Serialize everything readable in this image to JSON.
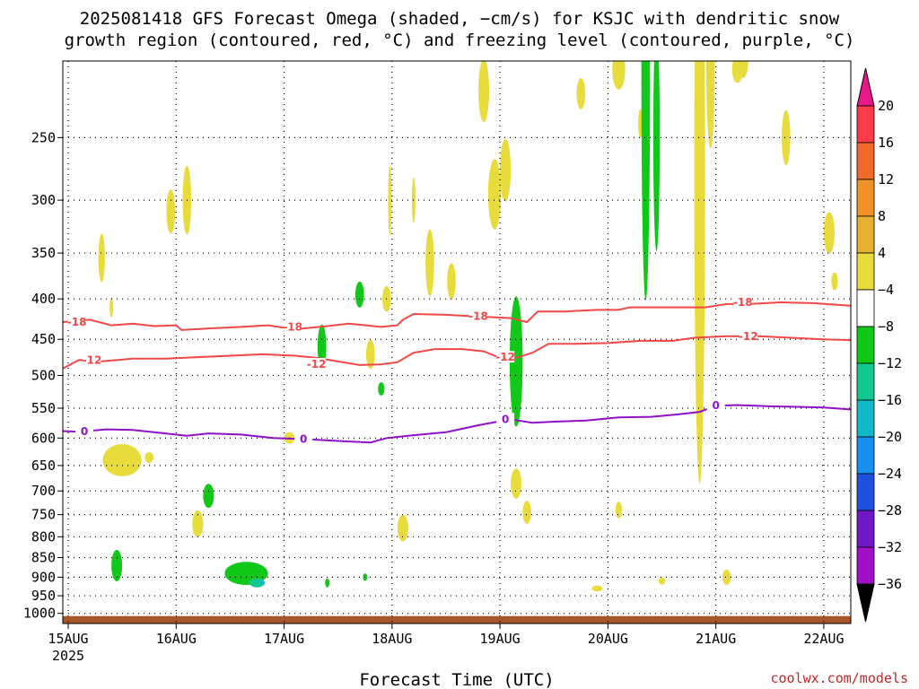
{
  "title_line1": "2025081418 GFS Forecast Omega (shaded, −cm/s) for KSJC with dendritic snow",
  "title_line2": "growth region (contoured, red, °C) and freezing level (contoured, purple, °C)",
  "credit": "coolwx.com/models",
  "chart_data": {
    "type": "heatmap",
    "xlabel": "Forecast Time (UTC)",
    "x_ticks": [
      {
        "label": "15AUG",
        "sub": "2025",
        "day": 0
      },
      {
        "label": "16AUG",
        "day": 1
      },
      {
        "label": "17AUG",
        "day": 2
      },
      {
        "label": "18AUG",
        "day": 3
      },
      {
        "label": "19AUG",
        "day": 4
      },
      {
        "label": "20AUG",
        "day": 5
      },
      {
        "label": "21AUG",
        "day": 6
      },
      {
        "label": "22AUG",
        "day": 7
      }
    ],
    "x_range_days": [
      -0.05,
      7.25
    ],
    "y_scale": "log-pressure",
    "y_range_hPa": [
      200,
      1030
    ],
    "y_ticks": [
      250,
      300,
      350,
      400,
      450,
      500,
      550,
      600,
      650,
      700,
      750,
      800,
      850,
      900,
      950,
      1000
    ],
    "grid": true,
    "colorbar": {
      "labels": [
        "20",
        "16",
        "12",
        "8",
        "4",
        "−4",
        "−8",
        "−12",
        "−16",
        "−20",
        "−24",
        "−28",
        "−32",
        "−36"
      ],
      "colors": [
        "#ff3a4a",
        "#f06a2a",
        "#f09228",
        "#e8b030",
        "#e8dc3c",
        "#ffffff",
        "#10c818",
        "#10c890",
        "#10b8c8",
        "#1890f0",
        "#2050e0",
        "#7018c8",
        "#a010c8",
        "#a8a8a8"
      ],
      "top_arrow_color": "#e8188a",
      "bottom_arrow_color": "#000000"
    },
    "contours": [
      {
        "name": "-18",
        "color": "#f04848",
        "points": [
          [
            -0.05,
            428
          ],
          [
            0.2,
            425
          ],
          [
            0.4,
            432
          ],
          [
            0.6,
            430
          ],
          [
            0.8,
            433
          ],
          [
            1.0,
            432
          ],
          [
            1.05,
            438
          ],
          [
            1.3,
            436
          ],
          [
            1.6,
            434
          ],
          [
            1.85,
            432
          ],
          [
            2.1,
            437
          ],
          [
            2.4,
            433
          ],
          [
            2.6,
            430
          ],
          [
            2.9,
            434
          ],
          [
            3.05,
            432
          ],
          [
            3.1,
            425
          ],
          [
            3.2,
            418
          ],
          [
            3.5,
            419
          ],
          [
            3.8,
            421
          ],
          [
            4.1,
            423
          ],
          [
            4.25,
            428
          ],
          [
            4.35,
            415
          ],
          [
            4.6,
            415
          ],
          [
            4.9,
            413
          ],
          [
            5.1,
            413
          ],
          [
            5.2,
            410
          ],
          [
            5.5,
            410
          ],
          [
            5.9,
            410
          ],
          [
            6.1,
            406
          ],
          [
            6.3,
            406
          ],
          [
            6.6,
            404
          ],
          [
            6.9,
            405
          ],
          [
            7.25,
            408
          ]
        ],
        "labels": [
          [
            0.08,
            428
          ],
          [
            2.08,
            434
          ],
          [
            3.8,
            421
          ],
          [
            6.25,
            404
          ]
        ]
      },
      {
        "name": "-12",
        "color": "#f04848",
        "points": [
          [
            -0.05,
            490
          ],
          [
            0.1,
            478
          ],
          [
            0.3,
            480
          ],
          [
            0.6,
            476
          ],
          [
            0.9,
            476
          ],
          [
            1.2,
            474
          ],
          [
            1.5,
            472
          ],
          [
            1.8,
            470
          ],
          [
            2.1,
            472
          ],
          [
            2.3,
            475
          ],
          [
            2.5,
            480
          ],
          [
            2.7,
            485
          ],
          [
            2.9,
            484
          ],
          [
            3.05,
            481
          ],
          [
            3.2,
            468
          ],
          [
            3.4,
            463
          ],
          [
            3.65,
            463
          ],
          [
            3.85,
            466
          ],
          [
            4.0,
            475
          ],
          [
            4.15,
            475
          ],
          [
            4.3,
            468
          ],
          [
            4.45,
            456
          ],
          [
            4.7,
            456
          ],
          [
            5.0,
            455
          ],
          [
            5.3,
            452
          ],
          [
            5.6,
            452
          ],
          [
            5.8,
            448
          ],
          [
            6.1,
            446
          ],
          [
            6.4,
            446
          ],
          [
            6.7,
            448
          ],
          [
            7.0,
            450
          ],
          [
            7.25,
            451
          ]
        ],
        "labels": [
          [
            0.22,
            478
          ],
          [
            2.3,
            484
          ],
          [
            4.05,
            474
          ],
          [
            6.3,
            446
          ]
        ]
      },
      {
        "name": "0",
        "color": "#9010c8",
        "points": [
          [
            -0.05,
            588
          ],
          [
            0.1,
            589
          ],
          [
            0.35,
            585
          ],
          [
            0.6,
            586
          ],
          [
            0.9,
            592
          ],
          [
            1.1,
            596
          ],
          [
            1.3,
            592
          ],
          [
            1.6,
            594
          ],
          [
            1.9,
            600
          ],
          [
            2.2,
            602
          ],
          [
            2.5,
            605
          ],
          [
            2.8,
            608
          ],
          [
            2.95,
            600
          ],
          [
            3.2,
            595
          ],
          [
            3.5,
            590
          ],
          [
            3.8,
            578
          ],
          [
            4.1,
            568
          ],
          [
            4.3,
            574
          ],
          [
            4.5,
            572
          ],
          [
            4.8,
            570
          ],
          [
            5.1,
            565
          ],
          [
            5.4,
            564
          ],
          [
            5.65,
            560
          ],
          [
            5.85,
            556
          ],
          [
            6.0,
            546
          ],
          [
            6.2,
            545
          ],
          [
            6.5,
            547
          ],
          [
            6.8,
            548
          ],
          [
            7.0,
            549
          ],
          [
            7.25,
            552
          ]
        ],
        "labels": [
          [
            0.15,
            589
          ],
          [
            2.18,
            602
          ],
          [
            4.05,
            568
          ],
          [
            6.0,
            546
          ]
        ]
      }
    ],
    "ground": {
      "color": "#a8552a",
      "top_hPa": 1008
    },
    "shaded_regions": [
      {
        "level": "4",
        "color": "#e8dc3c",
        "blobs": [
          [
            0.31,
            355,
            0.03,
            25
          ],
          [
            0.4,
            410,
            0.01,
            12
          ],
          [
            1.1,
            300,
            0.04,
            30
          ],
          [
            0.95,
            310,
            0.04,
            20
          ],
          [
            2.8,
            470,
            0.04,
            20
          ],
          [
            3.95,
            295,
            0.06,
            30
          ],
          [
            4.05,
            275,
            0.05,
            25
          ],
          [
            3.85,
            218,
            0.05,
            20
          ],
          [
            2.98,
            300,
            0.01,
            30
          ],
          [
            3.2,
            300,
            0.01,
            20
          ],
          [
            0.5,
            640,
            0.18,
            30
          ],
          [
            2.05,
            600,
            0.05,
            10
          ],
          [
            3.1,
            780,
            0.05,
            30
          ],
          [
            4.15,
            685,
            0.05,
            30
          ],
          [
            4.25,
            745,
            0.04,
            25
          ],
          [
            5.1,
            740,
            0.03,
            18
          ],
          [
            1.2,
            770,
            0.05,
            30
          ],
          [
            0.75,
            635,
            0.04,
            10
          ],
          [
            4.9,
            930,
            0.05,
            8
          ],
          [
            5.5,
            910,
            0.03,
            10
          ],
          [
            6.1,
            900,
            0.04,
            20
          ],
          [
            6.65,
            250,
            0.04,
            20
          ],
          [
            6.2,
            205,
            0.05,
            8
          ],
          [
            6.25,
            200,
            0.05,
            10
          ],
          [
            7.05,
            330,
            0.05,
            20
          ],
          [
            7.1,
            380,
            0.03,
            10
          ],
          [
            2.95,
            400,
            0.04,
            15
          ],
          [
            3.35,
            360,
            0.04,
            35
          ],
          [
            3.55,
            380,
            0.04,
            20
          ],
          [
            4.75,
            220,
            0.04,
            10
          ],
          [
            5.1,
            205,
            0.06,
            12
          ],
          [
            5.3,
            240,
            0.02,
            10
          ],
          [
            5.85,
            280,
            0.05,
            200
          ],
          [
            5.95,
            200,
            0.04,
            50
          ]
        ]
      },
      {
        "level": "-4",
        "color": "#10c818",
        "blobs": [
          [
            0.45,
            870,
            0.05,
            40
          ],
          [
            1.3,
            710,
            0.05,
            25
          ],
          [
            1.65,
            890,
            0.2,
            30
          ],
          [
            2.35,
            460,
            0.04,
            30
          ],
          [
            2.7,
            395,
            0.04,
            15
          ],
          [
            4.15,
            480,
            0.06,
            90
          ],
          [
            5.35,
            210,
            0.04,
            120
          ],
          [
            5.45,
            250,
            0.03,
            80
          ],
          [
            7.3,
            240,
            0.05,
            40
          ],
          [
            2.4,
            915,
            0.02,
            12
          ],
          [
            2.75,
            900,
            0.02,
            10
          ],
          [
            2.9,
            520,
            0.03,
            10
          ]
        ]
      },
      {
        "level": "-8",
        "color": "#10c890",
        "blobs": [
          [
            1.75,
            915,
            0.07,
            12
          ]
        ]
      },
      {
        "level": "-12",
        "color": "#10b8c8",
        "blobs": [
          [
            1.8,
            915,
            0.02,
            6
          ]
        ]
      }
    ]
  }
}
